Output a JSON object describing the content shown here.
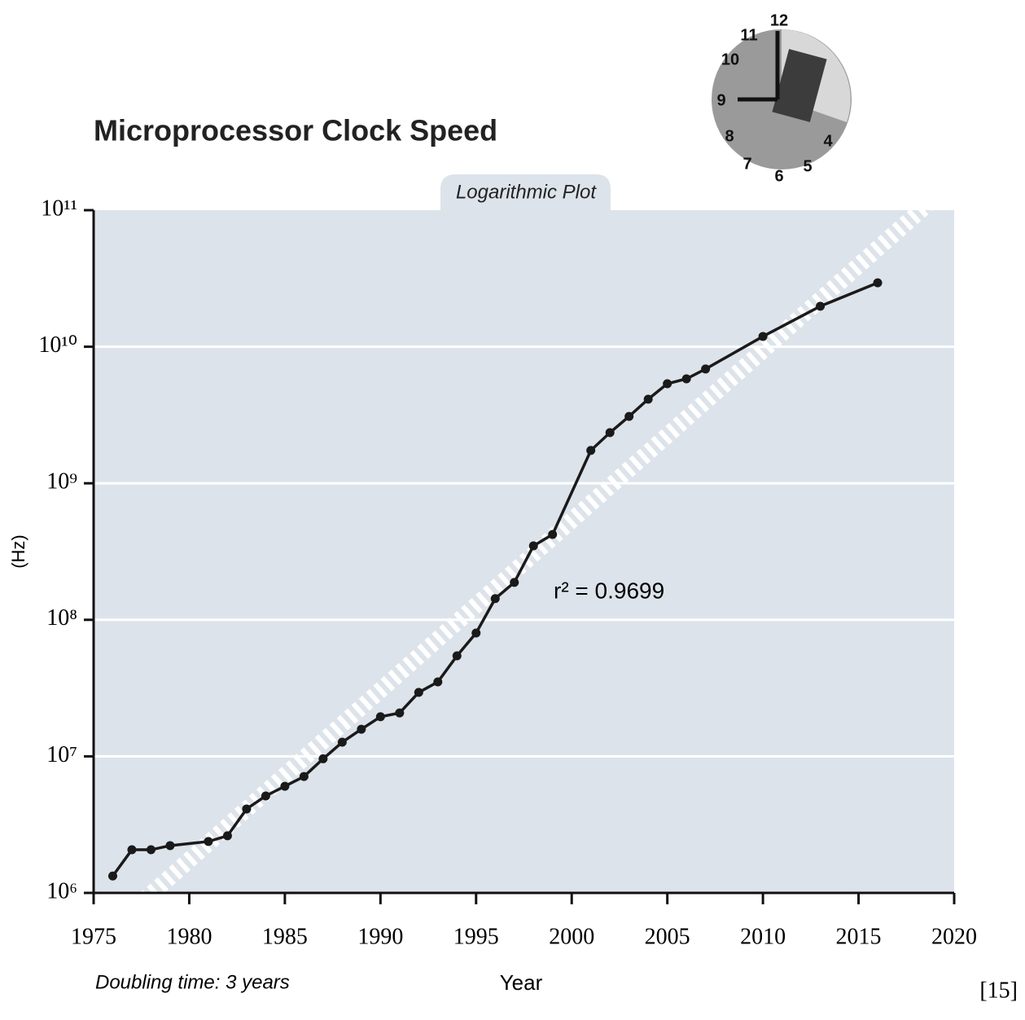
{
  "chart_data": {
    "type": "line",
    "title": "Microprocessor Clock Speed",
    "subtitle": "Logarithmic Plot",
    "y_label": "(Hz)",
    "x_label": "Year",
    "annotation": "r² = 0.9699",
    "footnote": "Doubling time: 3 years",
    "citation": "[15]",
    "illustration_labels": [
      "12",
      "11",
      "10",
      "9",
      "8",
      "7",
      "6",
      "5",
      "4"
    ],
    "x": [
      1976,
      1977,
      1978,
      1979,
      1981,
      1982,
      1983,
      1984,
      1985,
      1986,
      1987,
      1988,
      1989,
      1990,
      1991,
      1992,
      1993,
      1994,
      1995,
      1996,
      1997,
      1998,
      1999,
      2001,
      2002,
      2003,
      2004,
      2005,
      2006,
      2007,
      2010,
      2013,
      2016
    ],
    "series": [
      {
        "color": "#1a1a1a",
        "values": [
          1330000,
          2070000,
          2070000,
          2220000,
          2380000,
          2620000,
          4120000,
          5130000,
          6040000,
          7120000,
          9600000,
          12700000,
          15800000,
          19500000,
          20800000,
          29400000,
          35100000,
          54500000,
          80000000,
          143000000,
          188000000,
          348000000,
          422000000,
          1740000000,
          2350000000,
          3090000000,
          4130000000,
          5360000000,
          5820000000,
          6870000000,
          11900000000,
          19800000000,
          29400000000
        ]
      }
    ],
    "xlim": [
      1975,
      2020
    ],
    "xticks": [
      1975,
      1980,
      1985,
      1990,
      1995,
      2000,
      2005,
      2010,
      2015,
      2020
    ],
    "ylim": [
      1000000,
      100000000000
    ],
    "log_y": true,
    "yticks": [
      {
        "value": 1000000,
        "label": "10⁶"
      },
      {
        "value": 10000000,
        "label": "10⁷"
      },
      {
        "value": 100000000,
        "label": "10⁸"
      },
      {
        "value": 1000000000,
        "label": "10⁹"
      },
      {
        "value": 10000000000,
        "label": "10¹⁰"
      },
      {
        "value": 100000000000,
        "label": "10¹¹"
      }
    ],
    "grid": true
  }
}
